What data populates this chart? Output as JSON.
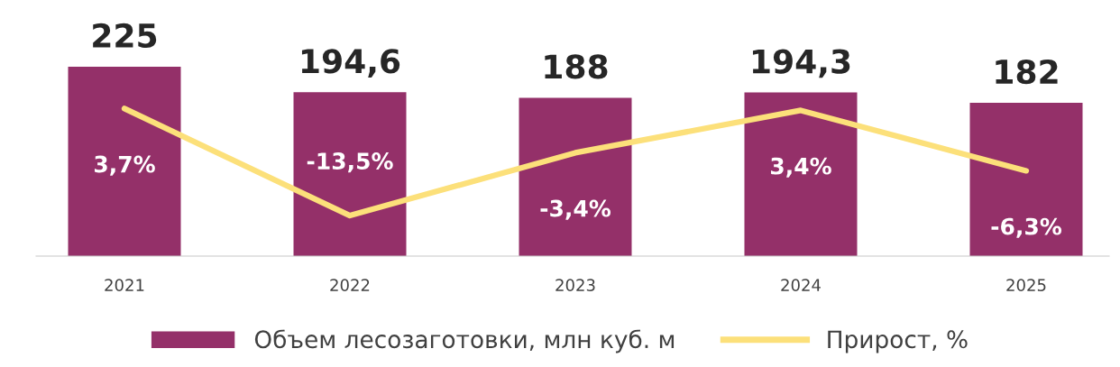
{
  "chart_data": {
    "type": "bar",
    "categories": [
      "2021",
      "2022",
      "2023",
      "2024",
      "2025"
    ],
    "series": [
      {
        "name": "Объем лесозаготовки, млн куб. м",
        "color": "#943069",
        "values": [
          225,
          194.6,
          188,
          194.3,
          182
        ],
        "value_labels": [
          "225",
          "194,6",
          "188",
          "194,3",
          "182"
        ]
      },
      {
        "name": "Прирост, %",
        "type": "line",
        "axis": "y2",
        "color": "#fce07a",
        "values": [
          3.7,
          -13.5,
          -3.4,
          3.4,
          -6.3
        ],
        "value_labels": [
          "3,7%",
          "-13,5%",
          "-3,4%",
          "3,4%",
          "-6,3%"
        ]
      }
    ],
    "tick_labels": "x",
    "grid": false,
    "legend": "bottom",
    "marker": "none",
    "line_style": "solid"
  }
}
